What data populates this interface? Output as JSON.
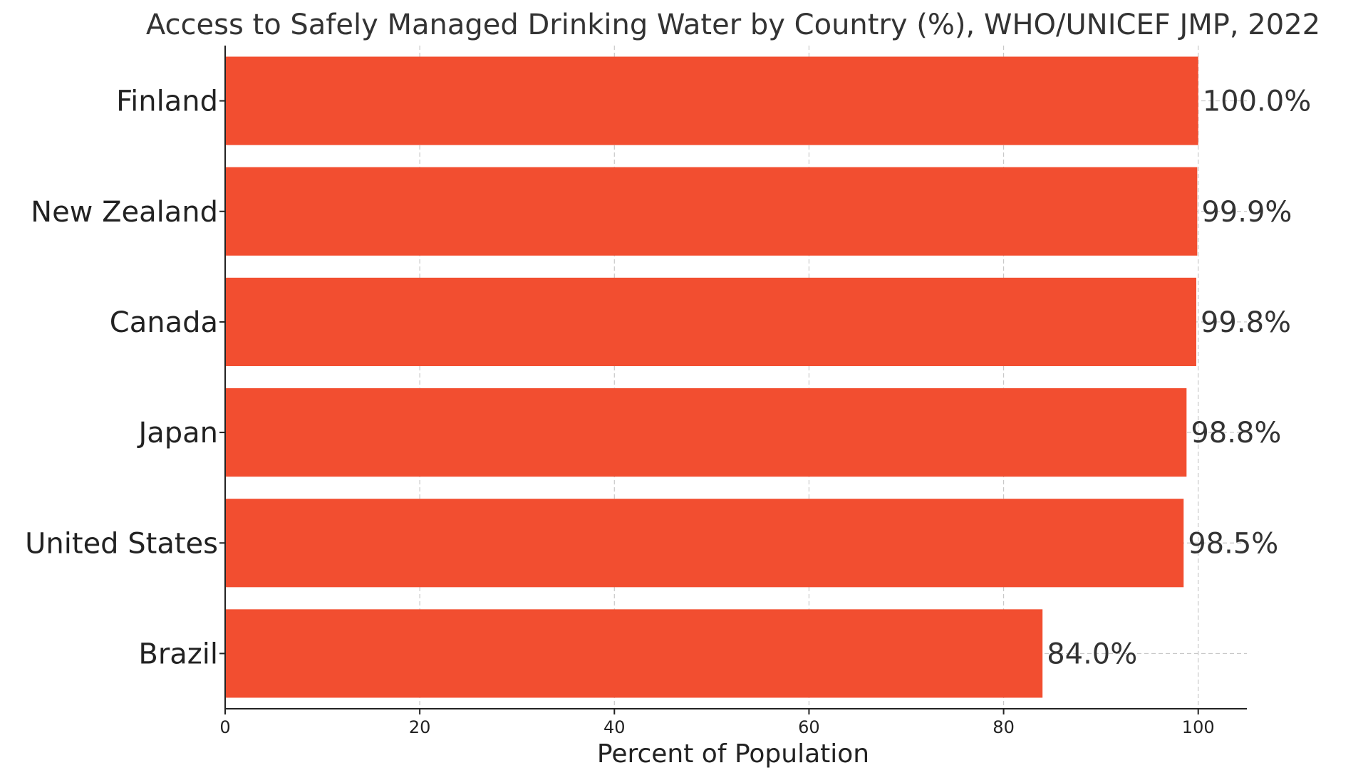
{
  "chart_data": {
    "type": "bar",
    "orientation": "horizontal",
    "title": "Access to Safely Managed Drinking Water by Country (%), WHO/UNICEF JMP, 2022",
    "xlabel": "Percent of Population",
    "ylabel": "",
    "categories": [
      "Finland",
      "New Zealand",
      "Canada",
      "Japan",
      "United States",
      "Brazil"
    ],
    "values": [
      100.0,
      99.9,
      99.8,
      98.8,
      98.5,
      84.0
    ],
    "value_labels": [
      "100.0%",
      "99.9%",
      "99.8%",
      "98.8%",
      "98.5%",
      "84.0%"
    ],
    "xlim": [
      0,
      105
    ],
    "xticks": [
      0,
      20,
      40,
      60,
      80,
      100
    ],
    "xtick_labels": [
      "0",
      "20",
      "40",
      "60",
      "80",
      "100"
    ],
    "grid": true,
    "bar_color": "#f24e30"
  }
}
